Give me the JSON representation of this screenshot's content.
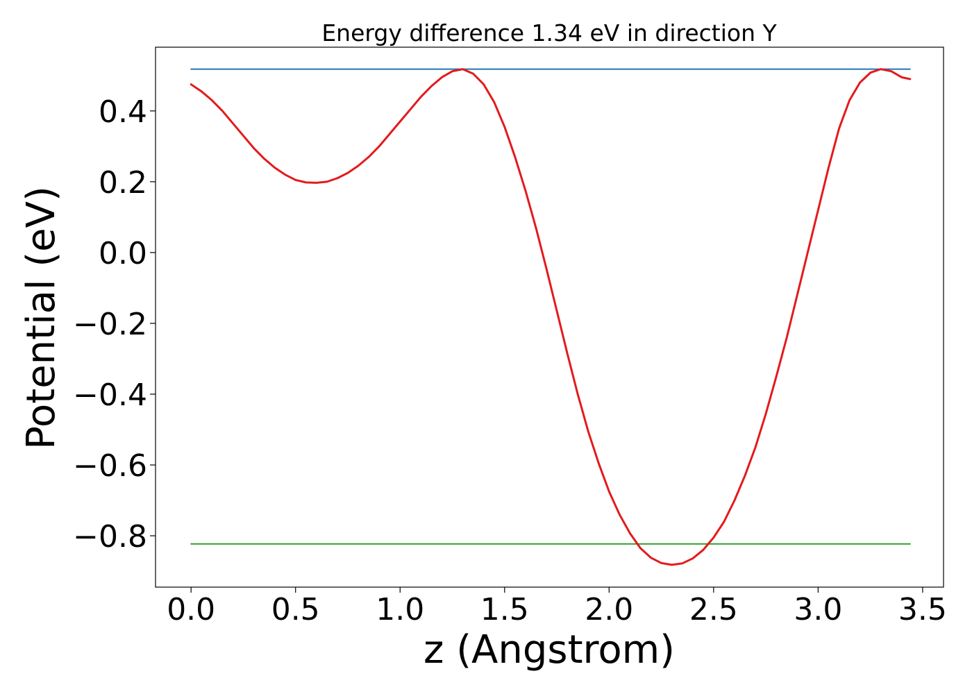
{
  "chart_data": {
    "type": "line",
    "title": "Energy difference 1.34 eV in direction Y",
    "xlabel": "z (Angstrom)",
    "ylabel": "Potential (eV)",
    "xlim": [
      -0.17,
      3.6
    ],
    "ylim": [
      -0.945,
      0.58
    ],
    "xticks": [
      0.0,
      0.5,
      1.0,
      1.5,
      2.0,
      2.5,
      3.0,
      3.5
    ],
    "xtick_labels": [
      "0.0",
      "0.5",
      "1.0",
      "1.5",
      "2.0",
      "2.5",
      "3.0",
      "3.5"
    ],
    "yticks": [
      0.4,
      0.2,
      0.0,
      -0.2,
      -0.4,
      -0.6,
      -0.8
    ],
    "ytick_labels": [
      "0.4",
      "0.2",
      "0.0",
      "−0.2",
      "−0.4",
      "−0.6",
      "−0.8"
    ],
    "grid": false,
    "legend": "none",
    "series": [
      {
        "color": "#e31a1c",
        "x": [
          0.0,
          0.05,
          0.1,
          0.15,
          0.2,
          0.25,
          0.3,
          0.35,
          0.4,
          0.45,
          0.5,
          0.55,
          0.6,
          0.65,
          0.7,
          0.75,
          0.8,
          0.85,
          0.9,
          0.95,
          1.0,
          1.05,
          1.1,
          1.15,
          1.2,
          1.25,
          1.3,
          1.35,
          1.4,
          1.45,
          1.5,
          1.55,
          1.6,
          1.65,
          1.7,
          1.75,
          1.8,
          1.85,
          1.9,
          1.95,
          2.0,
          2.05,
          2.1,
          2.15,
          2.2,
          2.25,
          2.3,
          2.35,
          2.4,
          2.45,
          2.5,
          2.55,
          2.6,
          2.65,
          2.7,
          2.75,
          2.8,
          2.85,
          2.9,
          2.95,
          3.0,
          3.05,
          3.1,
          3.15,
          3.2,
          3.25,
          3.3,
          3.35,
          3.4,
          3.44
        ],
        "y": [
          0.475,
          0.455,
          0.43,
          0.4,
          0.365,
          0.33,
          0.295,
          0.265,
          0.24,
          0.22,
          0.205,
          0.198,
          0.197,
          0.2,
          0.21,
          0.225,
          0.245,
          0.27,
          0.3,
          0.335,
          0.37,
          0.405,
          0.44,
          0.47,
          0.495,
          0.512,
          0.518,
          0.505,
          0.475,
          0.425,
          0.355,
          0.27,
          0.175,
          0.07,
          -0.045,
          -0.165,
          -0.285,
          -0.4,
          -0.505,
          -0.595,
          -0.675,
          -0.74,
          -0.793,
          -0.835,
          -0.862,
          -0.877,
          -0.882,
          -0.878,
          -0.864,
          -0.84,
          -0.805,
          -0.76,
          -0.7,
          -0.63,
          -0.55,
          -0.455,
          -0.35,
          -0.24,
          -0.12,
          0.0,
          0.12,
          0.24,
          0.35,
          0.43,
          0.48,
          0.508,
          0.518,
          0.512,
          0.495,
          0.49
        ]
      },
      {
        "color": "#1f77b4",
        "x": [
          0.0,
          3.44
        ],
        "y": [
          0.518,
          0.518
        ]
      },
      {
        "color": "#2ca02c",
        "x": [
          0.0,
          3.44
        ],
        "y": [
          -0.823,
          -0.823
        ]
      }
    ]
  }
}
